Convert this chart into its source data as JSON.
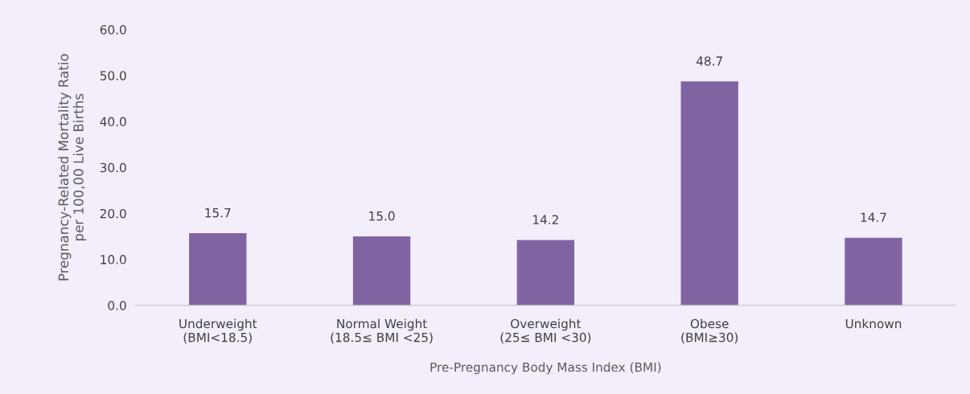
{
  "chart_data": {
    "type": "bar",
    "categories": [
      "Underweight\n(BMI<18.5)",
      "Normal Weight\n(18.5≤ BMI <25)",
      "Overweight\n(25≤ BMI <30)",
      "Obese\n(BMI≥30)",
      "Unknown"
    ],
    "values": [
      15.7,
      15.0,
      14.2,
      48.7,
      14.7
    ],
    "color": "#8064a2",
    "value_labels": [
      "15.7",
      "15.0",
      "14.2",
      "48.7",
      "14.7"
    ],
    "xlabel": "Pre-Pregnancy Body Mass Index (BMI)",
    "ylabel": "Pregnancy-Related Mortality Ratio\nper 100,00 Live Births",
    "ylim": [
      0,
      60
    ],
    "yticks": [
      {
        "value": 0,
        "label": "0.0"
      },
      {
        "value": 10,
        "label": "10.0"
      },
      {
        "value": 20,
        "label": "20.0"
      },
      {
        "value": 30,
        "label": "30.0"
      },
      {
        "value": 40,
        "label": "40.0"
      },
      {
        "value": 50,
        "label": "50.0"
      },
      {
        "value": 60,
        "label": "60.0"
      }
    ],
    "grid": false,
    "legend": false
  }
}
